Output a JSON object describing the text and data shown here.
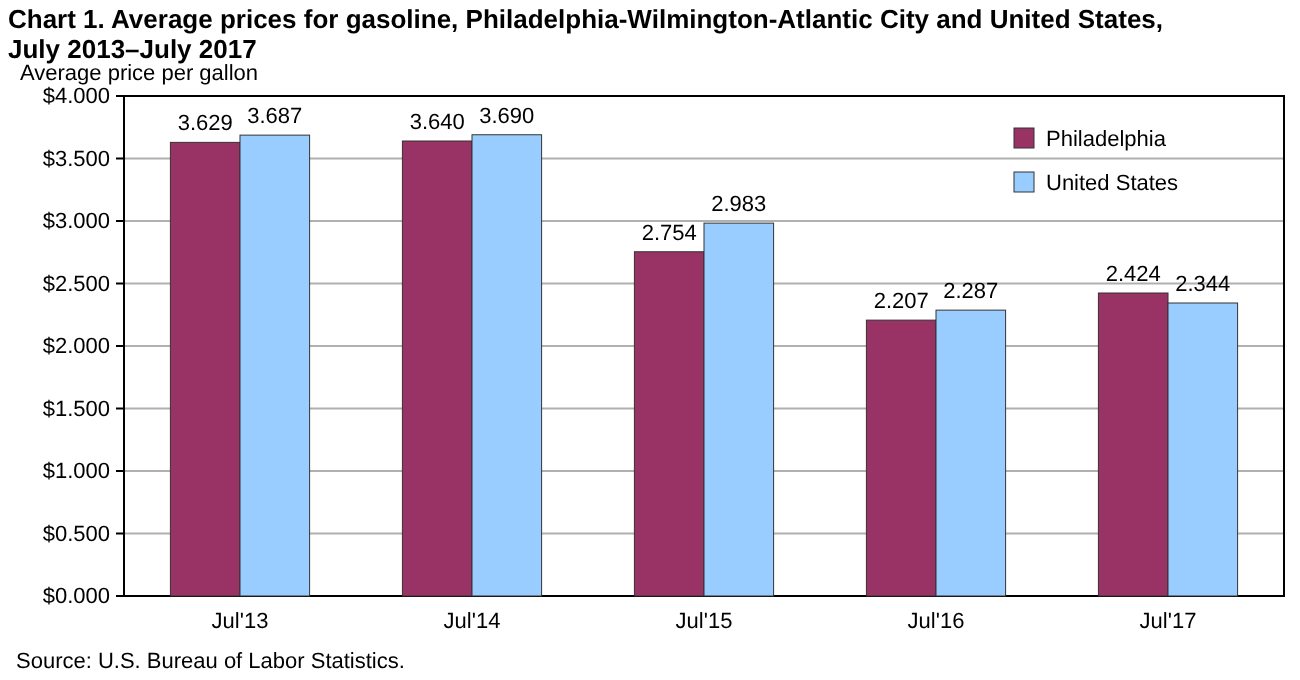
{
  "chart_data": {
    "type": "bar",
    "title": "Chart 1. Average prices for gasoline, Philadelphia-Wilmington-Atlantic City and United States, July 2013–July 2017",
    "ylabel": "Average price per gallon",
    "categories": [
      "Jul'13",
      "Jul'14",
      "Jul'15",
      "Jul'16",
      "Jul'17"
    ],
    "series": [
      {
        "name": "Philadelphia",
        "color": "#993366",
        "values": [
          3.629,
          3.64,
          2.754,
          2.207,
          2.424
        ],
        "value_labels": [
          "3.629",
          "3.640",
          "2.754",
          "2.207",
          "2.424"
        ]
      },
      {
        "name": "United States",
        "color": "#99ccff",
        "values": [
          3.687,
          3.69,
          2.983,
          2.287,
          2.344
        ],
        "value_labels": [
          "3.687",
          "3.690",
          "2.983",
          "2.287",
          "2.344"
        ]
      }
    ],
    "ylim": [
      0,
      4
    ],
    "yticks": [
      {
        "value": 0,
        "label": "$0.000"
      },
      {
        "value": 0.5,
        "label": "$0.500"
      },
      {
        "value": 1,
        "label": "$1.000"
      },
      {
        "value": 1.5,
        "label": "$1.500"
      },
      {
        "value": 2,
        "label": "$2.000"
      },
      {
        "value": 2.5,
        "label": "$2.500"
      },
      {
        "value": 3,
        "label": "$3.000"
      },
      {
        "value": 3.5,
        "label": "$3.500"
      },
      {
        "value": 4,
        "label": "$4.000"
      }
    ],
    "grid": "y",
    "legend": "top right",
    "annotations": [
      "Source: U.S. Bureau of Labor Statistics."
    ]
  }
}
